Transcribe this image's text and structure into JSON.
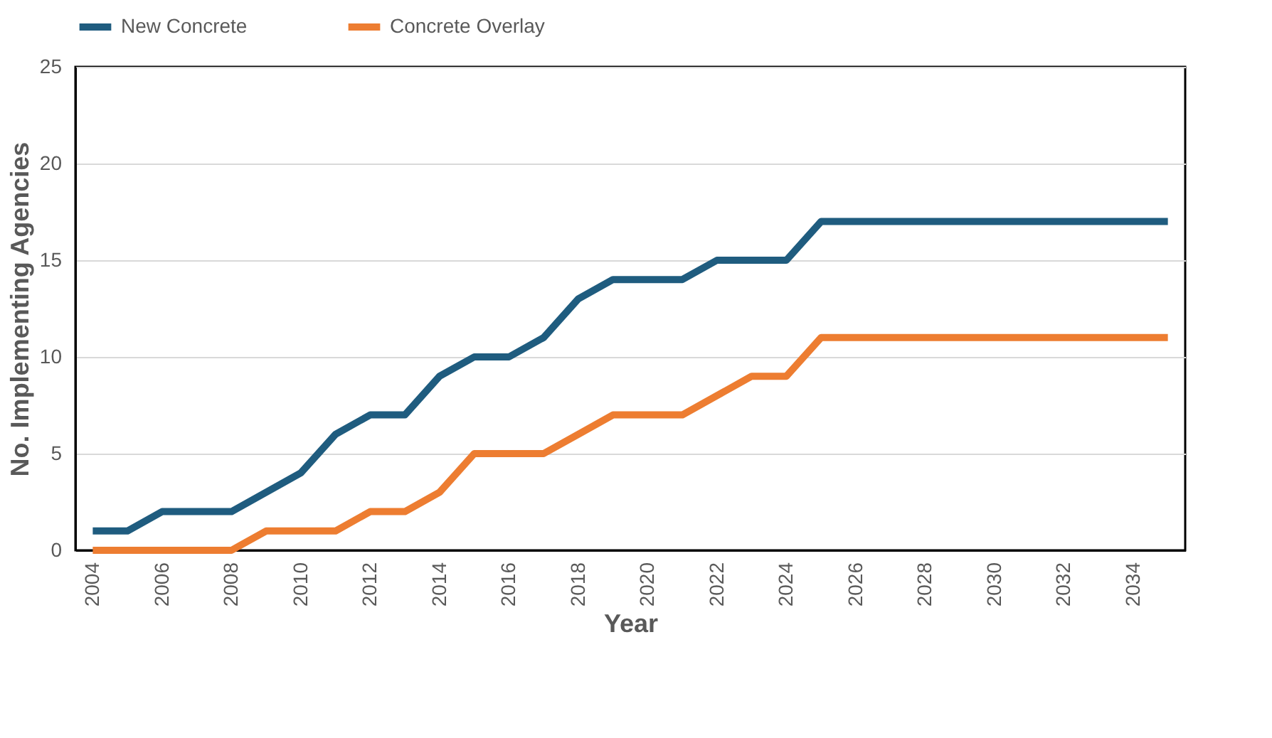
{
  "chart_data": {
    "type": "line",
    "xlabel": "Year",
    "ylabel": "No. Implementing Agencies",
    "categories": [
      "2004",
      null,
      "2006",
      null,
      "2008",
      null,
      "2010",
      null,
      "2012",
      null,
      "2014",
      null,
      "2016",
      null,
      "2018",
      null,
      "2020",
      null,
      "2022",
      null,
      "2024",
      null,
      "2026",
      null,
      "2028",
      null,
      "2030",
      null,
      "2032",
      null,
      "2034",
      null
    ],
    "series": [
      {
        "name": "New Concrete",
        "color": "#1f5c7f",
        "values": [
          1,
          1,
          2,
          2,
          2,
          3,
          4,
          6,
          7,
          7,
          9,
          10,
          10,
          11,
          13,
          14,
          14,
          14,
          15,
          15,
          15,
          17,
          17,
          17,
          17,
          17,
          17,
          17,
          17,
          17,
          17,
          17
        ]
      },
      {
        "name": "Concrete Overlay",
        "color": "#ed7d31",
        "values": [
          0,
          0,
          0,
          0,
          0,
          1,
          1,
          1,
          2,
          2,
          3,
          5,
          5,
          5,
          6,
          7,
          7,
          7,
          8,
          9,
          9,
          11,
          11,
          11,
          11,
          11,
          11,
          11,
          11,
          11,
          11,
          11
        ]
      }
    ],
    "ylim": [
      0,
      25
    ],
    "yticks": [
      0,
      5,
      10,
      15,
      20,
      25
    ],
    "grid": "y",
    "legend": "top",
    "marker": "none",
    "line_style": "solid"
  }
}
